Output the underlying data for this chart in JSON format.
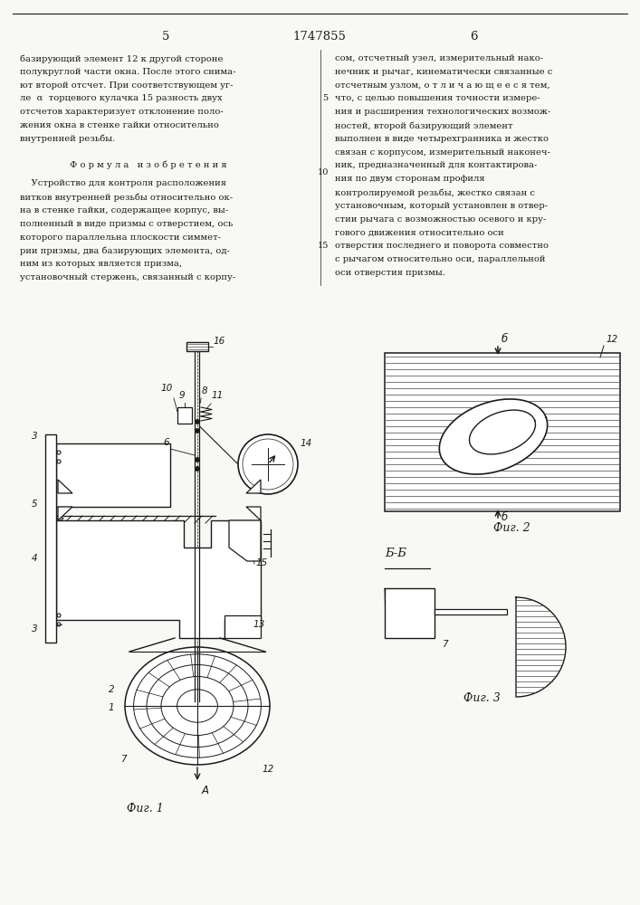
{
  "page_number_left": "5",
  "patent_number": "1747855",
  "page_number_right": "6",
  "background_color": "#f8f8f4",
  "text_color": "#1a1a1a",
  "left_column_text": [
    "базирующий элемент 12 к другой стороне",
    "полукруглой части окна. После этого снима-",
    "ют второй отсчет. При соответствующем уг-",
    "ле  α  торцевого кулачка 15 разность двух",
    "отсчетов характеризует отклонение поло-",
    "жения окна в стенке гайки относительно",
    "внутренней резьбы."
  ],
  "formula_title": "Ф о р м у л а   и з о б р е т е н и я",
  "formula_text": [
    "    Устройство для контроля расположения",
    "витков внутренней резьбы относительно ок-",
    "на в стенке гайки, содержащее корпус, вы-",
    "полненный в виде призмы с отверстием, ось",
    "которого параллельна плоскости симмет-",
    "рии призмы, два базирующих элемента, од-",
    "ним из которых является призма,",
    "установочный стержень, связанный с корпу-"
  ],
  "right_column_text": [
    "сом, отсчетный узел, измерительный нако-",
    "нечник и рычаг, кинематически связанные с",
    "отсчетным узлом, о т л и ч а ю щ е е с я тем,",
    "что, с целью повышения точности измере-",
    "ния и расширения технологических возмож-",
    "ностей, второй базирующий элемент",
    "выполнен в виде четырехгранника и жестко",
    "связан с корпусом, измерительный наконеч-",
    "ник, предназначенный для контактирова-",
    "ния по двум сторонам профиля",
    "контролируемой резьбы, жестко связан с",
    "установочным, который установлен в отвер-",
    "стии рычага с возможностью осевого и кру-",
    "гового движения относительно оси",
    "отверстия последнего и поворота совместно",
    "с рычагом относительно оси, параллельной",
    "оси отверстия призмы."
  ],
  "fig1_label": "Фиг. 1",
  "fig2_label": "Фиг. 2",
  "fig3_label": "Фиг. 3",
  "fig3_section_label": "Б-Б"
}
